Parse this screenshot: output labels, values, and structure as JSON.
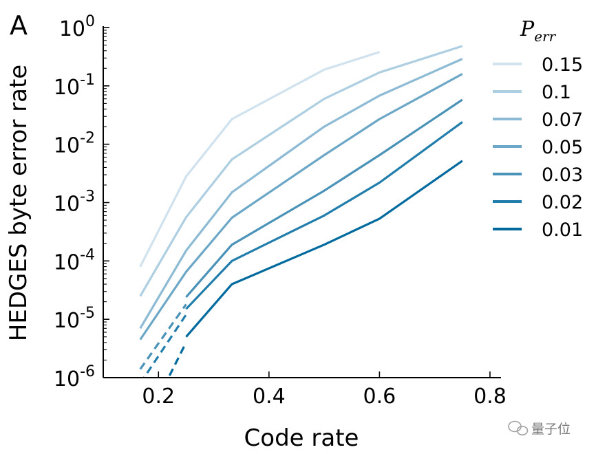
{
  "panel_label": "A",
  "watermark": "量子位",
  "chart_data": {
    "type": "line",
    "xlabel": "Code rate",
    "ylabel": "HEDGES byte error rate",
    "xlim": [
      0.1,
      0.82
    ],
    "ylim": [
      1e-06,
      1
    ],
    "yscale": "log",
    "grid": false,
    "legend": {
      "title_base": "P",
      "title_sub": "err",
      "placement": "right"
    },
    "x_ticks": [
      {
        "value": 0.2,
        "label": "0.2"
      },
      {
        "value": 0.4,
        "label": "0.4"
      },
      {
        "value": 0.6,
        "label": "0.6"
      },
      {
        "value": 0.8,
        "label": "0.8"
      }
    ],
    "y_ticks": [
      {
        "exp": 0,
        "base": "10",
        "sup": "0"
      },
      {
        "exp": -1,
        "base": "10",
        "sup": "-1"
      },
      {
        "exp": -2,
        "base": "10",
        "sup": "-2"
      },
      {
        "exp": -3,
        "base": "10",
        "sup": "-3"
      },
      {
        "exp": -4,
        "base": "10",
        "sup": "-4"
      },
      {
        "exp": -5,
        "base": "10",
        "sup": "-5"
      },
      {
        "exp": -6,
        "base": "10",
        "sup": "-6"
      }
    ],
    "series": [
      {
        "name": "0.15",
        "color": "#cfe2ee",
        "solid": [
          [
            0.167,
            8e-05
          ],
          [
            0.25,
            0.0028
          ],
          [
            0.333,
            0.027
          ],
          [
            0.5,
            0.19
          ],
          [
            0.6,
            0.38
          ]
        ],
        "dashed": []
      },
      {
        "name": "0.1",
        "color": "#aecfe2",
        "solid": [
          [
            0.167,
            2.5e-05
          ],
          [
            0.25,
            0.00056
          ],
          [
            0.333,
            0.0055
          ],
          [
            0.5,
            0.06
          ],
          [
            0.6,
            0.17
          ],
          [
            0.75,
            0.48
          ]
        ],
        "dashed": []
      },
      {
        "name": "0.07",
        "color": "#8dbbd5",
        "solid": [
          [
            0.167,
            7e-06
          ],
          [
            0.25,
            0.00015
          ],
          [
            0.333,
            0.0015
          ],
          [
            0.5,
            0.02
          ],
          [
            0.6,
            0.068
          ],
          [
            0.75,
            0.29
          ]
        ],
        "dashed": []
      },
      {
        "name": "0.05",
        "color": "#6ca7c7",
        "solid": [
          [
            0.167,
            4.5e-06
          ],
          [
            0.25,
            6.5e-05
          ],
          [
            0.333,
            0.00055
          ],
          [
            0.5,
            0.0065
          ],
          [
            0.6,
            0.027
          ],
          [
            0.75,
            0.16
          ]
        ],
        "dashed": []
      },
      {
        "name": "0.03",
        "color": "#4a92b8",
        "solid": [
          [
            0.25,
            2.4e-05
          ],
          [
            0.333,
            0.00019
          ],
          [
            0.5,
            0.0016
          ],
          [
            0.6,
            0.0065
          ],
          [
            0.75,
            0.058
          ]
        ],
        "dashed": [
          [
            0.167,
            1.4e-06
          ],
          [
            0.25,
            1.8e-05
          ]
        ]
      },
      {
        "name": "0.02",
        "color": "#217dab",
        "solid": [
          [
            0.25,
            1.5e-05
          ],
          [
            0.333,
            0.0001
          ],
          [
            0.5,
            0.0006
          ],
          [
            0.6,
            0.0022
          ],
          [
            0.75,
            0.024
          ]
        ],
        "dashed": [
          [
            0.167,
            8e-07
          ],
          [
            0.25,
            1.2e-05
          ]
        ]
      },
      {
        "name": "0.01",
        "color": "#006a9e",
        "solid": [
          [
            0.25,
            5e-06
          ],
          [
            0.333,
            4e-05
          ],
          [
            0.5,
            0.00019
          ],
          [
            0.6,
            0.00053
          ],
          [
            0.75,
            0.0052
          ]
        ],
        "dashed": [
          [
            0.21,
            7e-07
          ],
          [
            0.25,
            4e-06
          ]
        ]
      }
    ]
  }
}
